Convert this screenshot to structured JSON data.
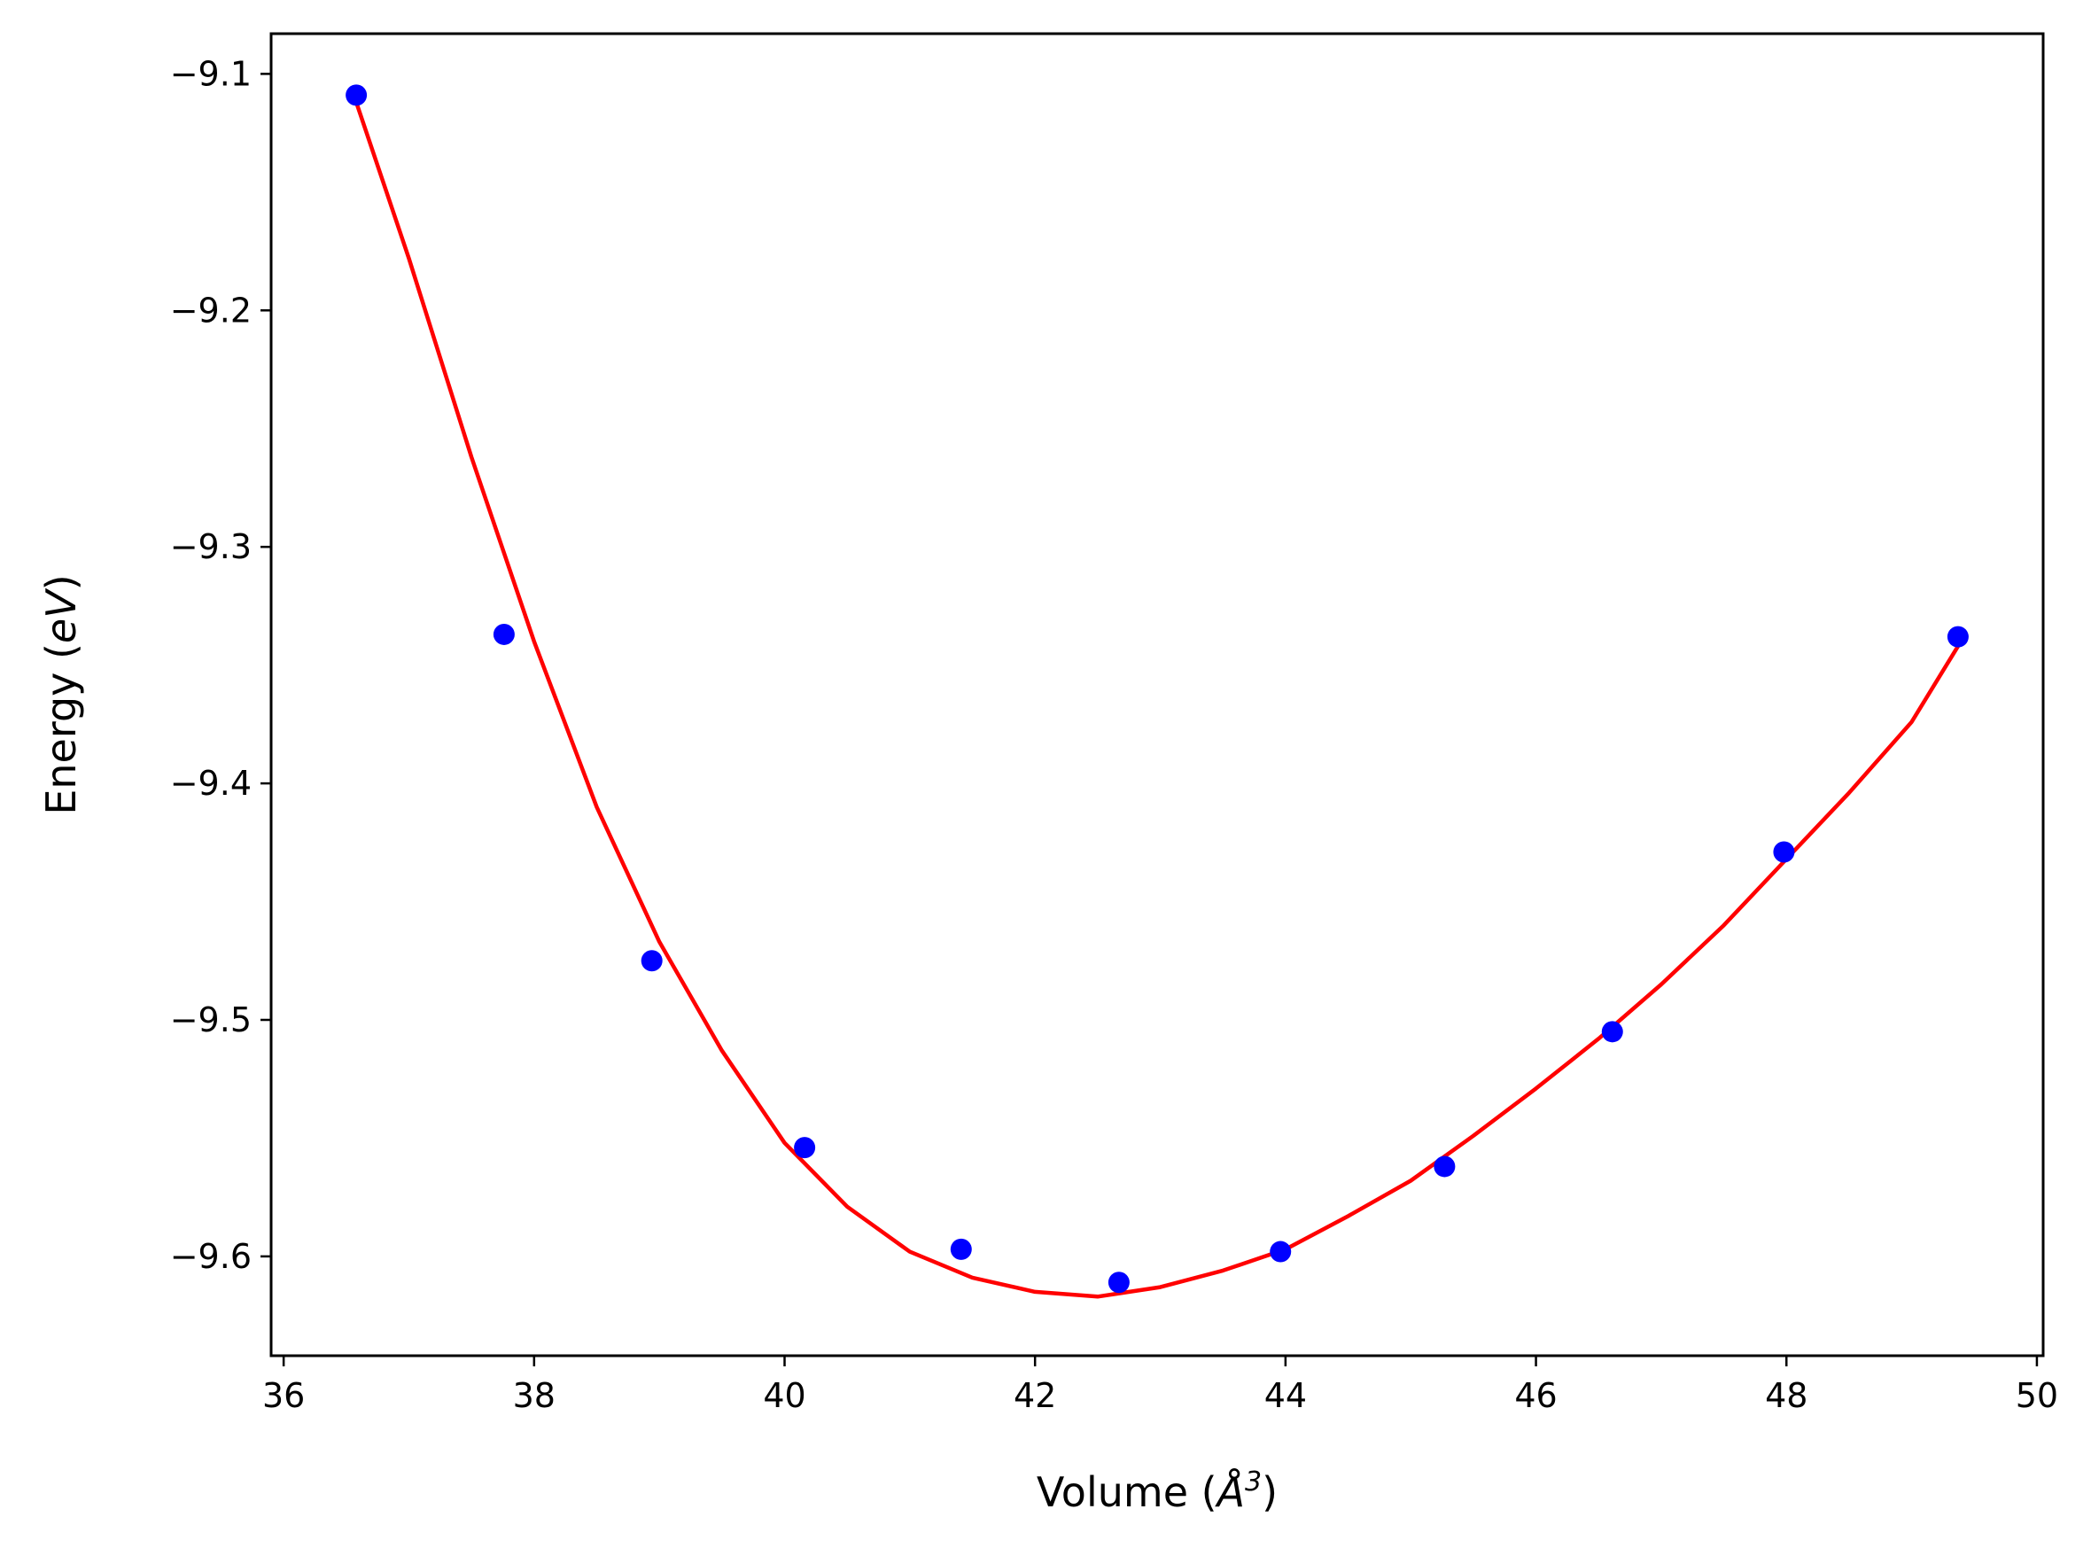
{
  "chart_data": {
    "type": "scatter",
    "xlabel_text": "Volume (",
    "xlabel_symbol": "Å",
    "xlabel_exponent": "3",
    "xlabel_close": ")",
    "ylabel_text": "Energy (",
    "ylabel_unit": "eV",
    "ylabel_close": ")",
    "xlim": [
      35.9,
      50.05
    ],
    "ylim": [
      -9.642,
      -9.083
    ],
    "xticks": [
      36,
      38,
      40,
      42,
      44,
      46,
      48,
      50
    ],
    "yticks": [
      -9.1,
      -9.2,
      -9.3,
      -9.4,
      -9.5,
      -9.6
    ],
    "xtick_labels": [
      "36",
      "38",
      "40",
      "42",
      "44",
      "46",
      "48",
      "50"
    ],
    "ytick_labels": [
      "−9.1",
      "−9.2",
      "−9.3",
      "−9.4",
      "−9.5",
      "−9.6"
    ],
    "grid": false,
    "series": [
      {
        "kind": "points",
        "color": "#0000ff",
        "x": [
          36.58,
          37.76,
          38.94,
          40.16,
          41.41,
          42.67,
          43.96,
          45.27,
          46.61,
          47.98,
          49.37
        ],
        "y": [
          -9.109,
          -9.337,
          -9.475,
          -9.554,
          -9.597,
          -9.611,
          -9.598,
          -9.562,
          -9.505,
          -9.429,
          -9.338
        ]
      },
      {
        "kind": "fit-curve",
        "color": "#ff0000",
        "x": [
          36.58,
          37.0,
          37.5,
          38.0,
          38.5,
          39.0,
          39.5,
          40.0,
          40.5,
          41.0,
          41.5,
          42.0,
          42.5,
          43.0,
          43.5,
          44.0,
          44.5,
          45.0,
          45.5,
          46.0,
          46.5,
          47.0,
          47.5,
          48.0,
          48.5,
          49.0,
          49.37
        ],
        "y": [
          -9.112,
          -9.178,
          -9.262,
          -9.34,
          -9.41,
          -9.467,
          -9.513,
          -9.552,
          -9.579,
          -9.598,
          -9.609,
          -9.615,
          -9.617,
          -9.613,
          -9.606,
          -9.597,
          -9.583,
          -9.568,
          -9.549,
          -9.529,
          -9.508,
          -9.485,
          -9.46,
          -9.432,
          -9.404,
          -9.374,
          -9.342
        ]
      }
    ]
  }
}
